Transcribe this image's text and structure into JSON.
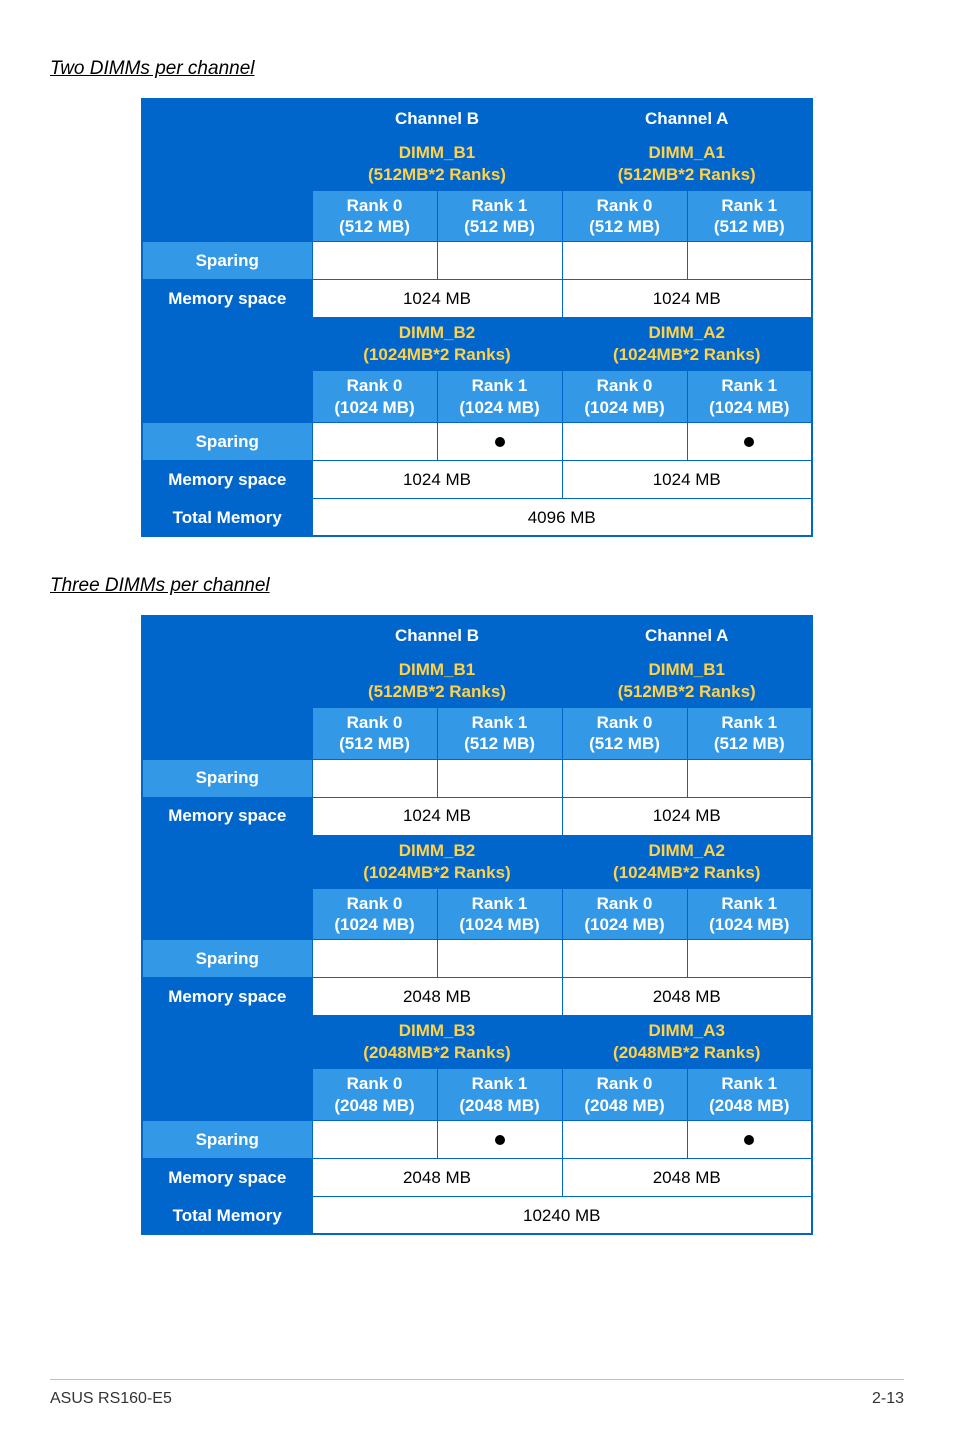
{
  "headings": {
    "two": "Two DIMMs per channel",
    "three": "Three DIMMs per channel"
  },
  "labels": {
    "channelB": "Channel B",
    "channelA": "Channel A",
    "sparing": "Sparing",
    "memspace": "Memory space",
    "totalmem": "Total Memory"
  },
  "t1": {
    "dimm_b1": "DIMM_B1",
    "dimm_b1_sub": "(512MB*2 Ranks)",
    "dimm_a1": "DIMM_A1",
    "dimm_a1_sub": "(512MB*2 Ranks)",
    "r0_512": "Rank 0",
    "r0_512_sub": "(512 MB)",
    "r1_512": "Rank 1",
    "r1_512_sub": "(512 MB)",
    "mem1_b": "1024 MB",
    "mem1_a": "1024 MB",
    "dimm_b2": "DIMM_B2",
    "dimm_b2_sub": "(1024MB*2 Ranks)",
    "dimm_a2": "DIMM_A2",
    "dimm_a2_sub": "(1024MB*2 Ranks)",
    "r0_1024": "Rank 0",
    "r0_1024_sub": "(1024 MB)",
    "r1_1024": "Rank 1",
    "r1_1024_sub": "(1024 MB)",
    "mem2_b": "1024 MB",
    "mem2_a": "1024 MB",
    "total": "4096 MB"
  },
  "t2": {
    "dimm_b1": "DIMM_B1",
    "dimm_b1_sub": "(512MB*2 Ranks)",
    "dimm_a_b1": "DIMM_B1",
    "dimm_a_b1_sub": "(512MB*2 Ranks)",
    "r0_512": "Rank 0",
    "r0_512_sub": "(512 MB)",
    "r1_512": "Rank 1",
    "r1_512_sub": "(512 MB)",
    "mem1_b": "1024 MB",
    "mem1_a": "1024 MB",
    "dimm_b2": "DIMM_B2",
    "dimm_b2_sub": "(1024MB*2 Ranks)",
    "dimm_a2": "DIMM_A2",
    "dimm_a2_sub": "(1024MB*2 Ranks)",
    "r0_1024": "Rank 0",
    "r0_1024_sub": "(1024 MB)",
    "r1_1024": "Rank 1",
    "r1_1024_sub": "(1024 MB)",
    "mem2_b": "2048 MB",
    "mem2_a": "2048 MB",
    "dimm_b3": "DIMM_B3",
    "dimm_b3_sub": "(2048MB*2 Ranks)",
    "dimm_a3": "DIMM_A3",
    "dimm_a3_sub": "(2048MB*2 Ranks)",
    "r0_2048": "Rank 0",
    "r0_2048_sub": "(2048 MB)",
    "r1_2048": "Rank 1",
    "r1_2048_sub": "(2048 MB)",
    "mem3_b": "2048 MB",
    "mem3_a": "2048 MB",
    "total": "10240 MB"
  },
  "footer": {
    "left": "ASUS RS160-E5",
    "right": "2-13"
  },
  "colors": {
    "brand_blue": "#0066cc",
    "light_blue": "#3399e6",
    "yellow": "#ffd24a",
    "white": "#ffffff",
    "black": "#000000",
    "rule": "#bfbfbf"
  }
}
